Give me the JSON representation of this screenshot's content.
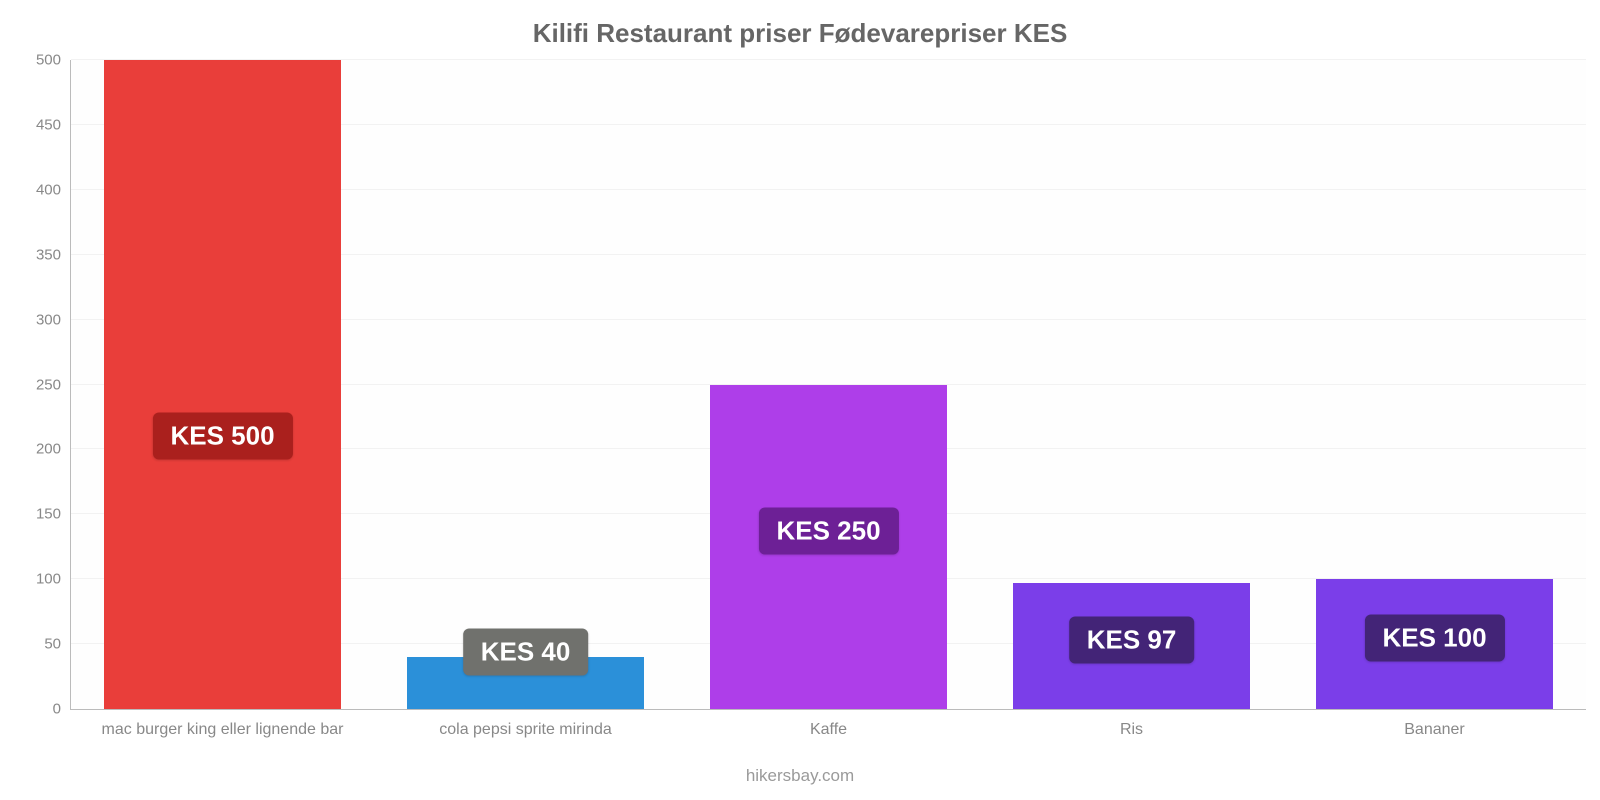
{
  "chart": {
    "type": "bar",
    "title": "Kilifi Restaurant priser Fødevarepriser KES",
    "title_color": "#666666",
    "title_fontsize": 26,
    "caption": "hikersbay.com",
    "caption_color": "#9a9a9a",
    "background_color": "#ffffff",
    "grid_color": "#f2f2f2",
    "axis_color": "#bbbbbb",
    "tick_color": "#888888",
    "tick_fontsize": 15,
    "xtick_fontsize": 16,
    "ylim": [
      0,
      500
    ],
    "ytick_step": 50,
    "yticks": [
      0,
      50,
      100,
      150,
      200,
      250,
      300,
      350,
      400,
      450,
      500
    ],
    "bar_width": 0.78,
    "label_fontsize": 26,
    "label_text_color": "#ffffff",
    "categories": [
      {
        "name": "mac burger king eller lignende bar",
        "value": 500,
        "label": "KES 500",
        "bar_color": "#e93e3a",
        "label_bg": "#aa201d"
      },
      {
        "name": "cola pepsi sprite mirinda",
        "value": 40,
        "label": "KES 40",
        "bar_color": "#2b90d9",
        "label_bg": "#70716d"
      },
      {
        "name": "Kaffe",
        "value": 250,
        "label": "KES 250",
        "bar_color": "#ae3ee9",
        "label_bg": "#6d2096"
      },
      {
        "name": "Ris",
        "value": 97,
        "label": "KES 97",
        "bar_color": "#7b3ee9",
        "label_bg": "#432477"
      },
      {
        "name": "Bananer",
        "value": 100,
        "label": "KES 100",
        "bar_color": "#7b3ee9",
        "label_bg": "#432477"
      }
    ]
  }
}
